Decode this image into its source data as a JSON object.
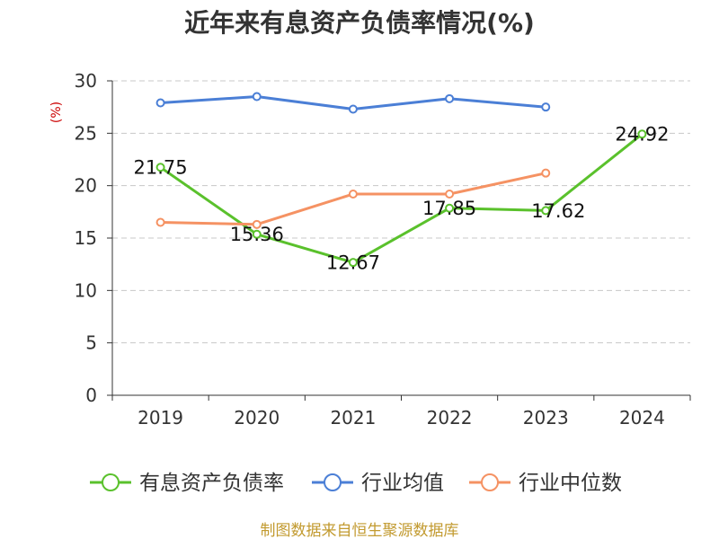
{
  "footer": "制图数据来自恒生聚源数据库",
  "colors": {
    "series": [
      "#5ac12c",
      "#4b7fd6",
      "#f59263"
    ],
    "title": "#333333",
    "ylabel": "#cc0000",
    "footer": "#c29a2f"
  },
  "chart_data": {
    "type": "line",
    "title": "近年来有息资产负债率情况(%)",
    "ylabel": "(%)",
    "categories": [
      "2019",
      "2020",
      "2021",
      "2022",
      "2023",
      "2024"
    ],
    "ylim": [
      0,
      30
    ],
    "yticks": [
      0,
      5,
      10,
      15,
      20,
      25,
      30
    ],
    "grid": true,
    "legend": "bottom",
    "series": [
      {
        "name": "有息资产负债率",
        "values": [
          21.75,
          15.36,
          12.67,
          17.85,
          17.62,
          24.92
        ],
        "data_labels": true
      },
      {
        "name": "行业均值",
        "values": [
          27.9,
          28.5,
          27.3,
          28.3,
          27.5,
          null
        ],
        "data_labels": false
      },
      {
        "name": "行业中位数",
        "values": [
          16.5,
          16.3,
          19.2,
          19.2,
          21.2,
          null
        ],
        "data_labels": false
      }
    ]
  }
}
